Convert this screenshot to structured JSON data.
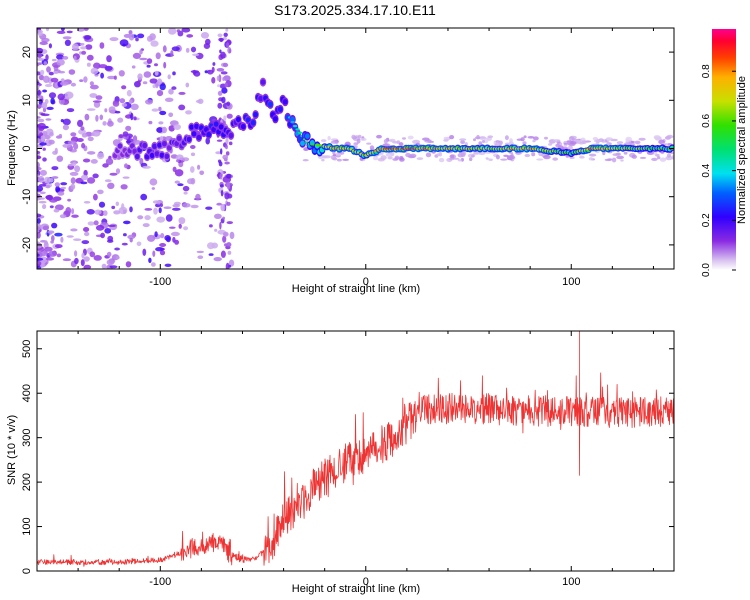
{
  "title": "S173.2025.334.17.10.E11",
  "chart_data": [
    {
      "type": "heatmap",
      "name": "spectrogram",
      "xlabel": "Height of straight line (km)",
      "ylabel": "Frequency (Hz)",
      "xlim": [
        -160,
        150
      ],
      "ylim": [
        -25,
        25
      ],
      "xticks": [
        -100,
        0,
        100
      ],
      "yticks": [
        -20,
        -10,
        0,
        10,
        20
      ],
      "colorbar": {
        "label": "Normalized spectral amplitude",
        "range": [
          0,
          0.97
        ],
        "ticks": [
          0.0,
          0.2,
          0.4,
          0.6,
          0.8
        ]
      },
      "ridge": [
        {
          "x": -120,
          "f": 0,
          "a": 0.2
        },
        {
          "x": -105,
          "f": -1,
          "a": 0.3
        },
        {
          "x": -95,
          "f": 0,
          "a": 0.25
        },
        {
          "x": -85,
          "f": 3,
          "a": 0.3
        },
        {
          "x": -75,
          "f": 4,
          "a": 0.35
        },
        {
          "x": -65,
          "f": 4,
          "a": 0.3
        },
        {
          "x": -55,
          "f": 6,
          "a": 0.35
        },
        {
          "x": -50,
          "f": 13,
          "a": 0.3
        },
        {
          "x": -45,
          "f": 7,
          "a": 0.4
        },
        {
          "x": -40,
          "f": 9,
          "a": 0.35
        },
        {
          "x": -35,
          "f": 5,
          "a": 0.45
        },
        {
          "x": -28,
          "f": 1,
          "a": 0.55
        },
        {
          "x": -20,
          "f": 0.5,
          "a": 0.7
        },
        {
          "x": -15,
          "f": 0,
          "a": 0.85
        },
        {
          "x": -8,
          "f": 0,
          "a": 0.8
        },
        {
          "x": 0,
          "f": -1.5,
          "a": 0.75
        },
        {
          "x": 8,
          "f": 0,
          "a": 0.9
        },
        {
          "x": 20,
          "f": 0,
          "a": 0.95
        },
        {
          "x": 40,
          "f": 0,
          "a": 0.8
        },
        {
          "x": 60,
          "f": 0,
          "a": 0.75
        },
        {
          "x": 80,
          "f": 0,
          "a": 0.85
        },
        {
          "x": 100,
          "f": -1,
          "a": 0.6
        },
        {
          "x": 110,
          "f": 0,
          "a": 0.9
        },
        {
          "x": 130,
          "f": 0,
          "a": 0.7
        },
        {
          "x": 150,
          "f": 0,
          "a": 0.6
        }
      ]
    },
    {
      "type": "line",
      "name": "snr",
      "xlabel": "Height of straight line (km)",
      "ylabel": "SNR (10 * v/v)",
      "xlim": [
        -160,
        150
      ],
      "ylim": [
        0,
        540
      ],
      "xticks": [
        -100,
        0,
        100
      ],
      "yticks": [
        0,
        100,
        200,
        300,
        400,
        500
      ],
      "color": "#ee3333",
      "envelope": [
        {
          "x": -160,
          "y": 20
        },
        {
          "x": -120,
          "y": 20
        },
        {
          "x": -100,
          "y": 25
        },
        {
          "x": -90,
          "y": 40
        },
        {
          "x": -80,
          "y": 60
        },
        {
          "x": -75,
          "y": 65
        },
        {
          "x": -70,
          "y": 55
        },
        {
          "x": -65,
          "y": 35
        },
        {
          "x": -60,
          "y": 25
        },
        {
          "x": -55,
          "y": 25
        },
        {
          "x": -50,
          "y": 40
        },
        {
          "x": -45,
          "y": 70
        },
        {
          "x": -40,
          "y": 110
        },
        {
          "x": -35,
          "y": 140
        },
        {
          "x": -30,
          "y": 160
        },
        {
          "x": -25,
          "y": 190
        },
        {
          "x": -20,
          "y": 210
        },
        {
          "x": -15,
          "y": 225
        },
        {
          "x": -10,
          "y": 245
        },
        {
          "x": -5,
          "y": 255
        },
        {
          "x": 0,
          "y": 260
        },
        {
          "x": 5,
          "y": 275
        },
        {
          "x": 10,
          "y": 290
        },
        {
          "x": 15,
          "y": 305
        },
        {
          "x": 20,
          "y": 330
        },
        {
          "x": 25,
          "y": 355
        },
        {
          "x": 30,
          "y": 365
        },
        {
          "x": 40,
          "y": 365
        },
        {
          "x": 60,
          "y": 365
        },
        {
          "x": 80,
          "y": 360
        },
        {
          "x": 100,
          "y": 360
        },
        {
          "x": 120,
          "y": 355
        },
        {
          "x": 150,
          "y": 360
        }
      ],
      "annotated_extremes": [
        {
          "x": 104,
          "y": 540
        },
        {
          "x": 104,
          "y": 215
        }
      ]
    }
  ]
}
